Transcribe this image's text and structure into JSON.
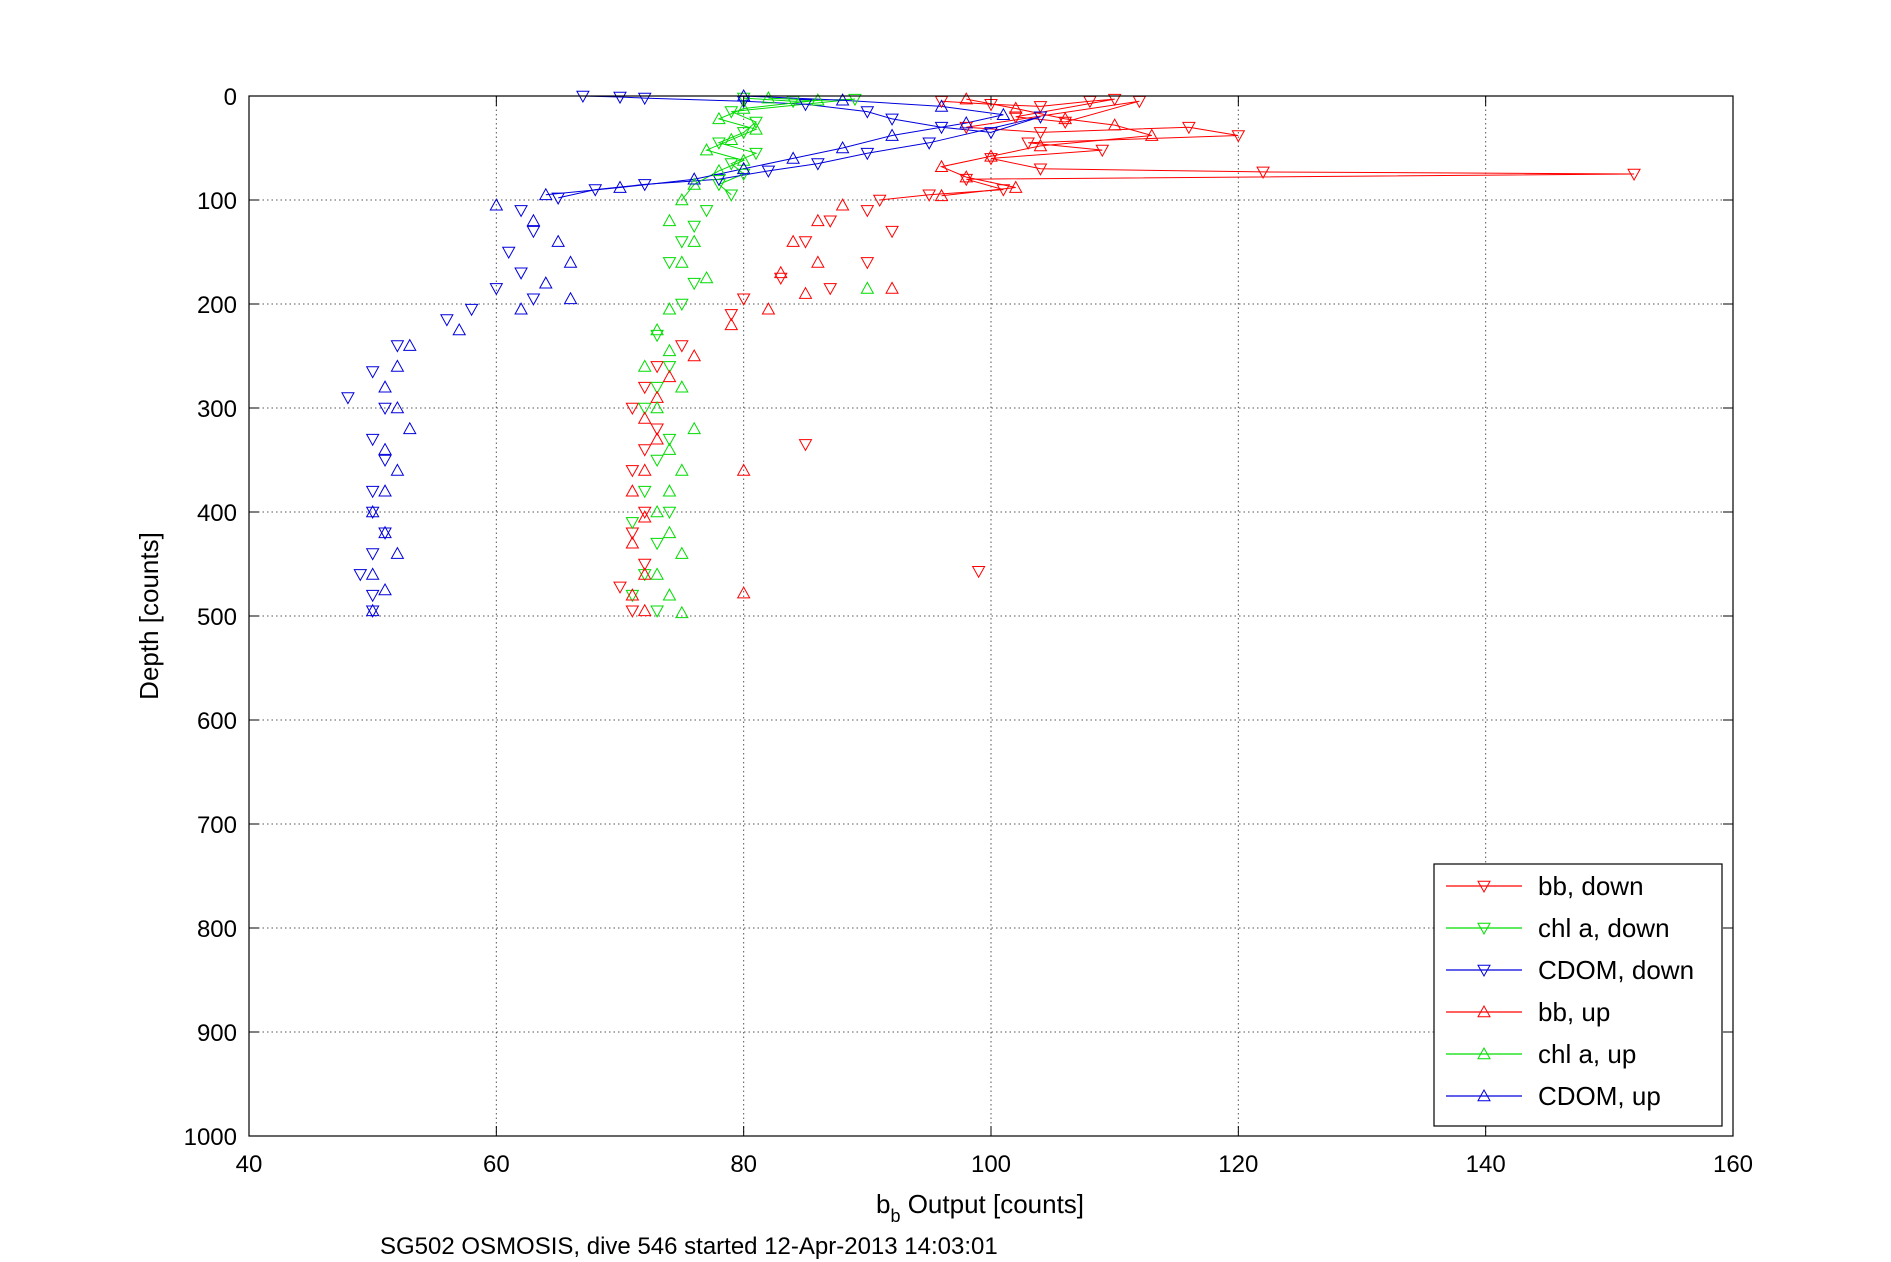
{
  "chart_data": {
    "type": "scatter",
    "xlabel_main": "b",
    "xlabel_sub": "b",
    "xlabel_rest": " Output [counts]",
    "ylabel": "Depth [counts]",
    "caption": "SG502 OSMOSIS, dive 546 started 12-Apr-2013 14:03:01",
    "xlim": [
      40,
      160
    ],
    "ylim": [
      0,
      1000
    ],
    "y_reversed": true,
    "grid": true,
    "legend_position": "bottom-right",
    "xticks": [
      "40",
      "60",
      "80",
      "100",
      "120",
      "140",
      "160"
    ],
    "yticks": [
      "0",
      "100",
      "200",
      "300",
      "400",
      "500",
      "600",
      "700",
      "800",
      "900",
      "1000"
    ],
    "series": [
      {
        "name": "bb, down",
        "color": "#ff0000",
        "marker": "triangle-down",
        "points": [
          [
            96,
            5
          ],
          [
            100,
            8
          ],
          [
            104,
            10
          ],
          [
            108,
            5
          ],
          [
            110,
            3
          ],
          [
            102,
            20
          ],
          [
            106,
            25
          ],
          [
            112,
            5
          ],
          [
            98,
            30
          ],
          [
            104,
            35
          ],
          [
            116,
            30
          ],
          [
            120,
            38
          ],
          [
            103,
            45
          ],
          [
            109,
            52
          ],
          [
            100,
            60
          ],
          [
            104,
            70
          ],
          [
            122,
            73
          ],
          [
            152,
            75
          ],
          [
            98,
            80
          ],
          [
            101,
            90
          ],
          [
            95,
            95
          ],
          [
            91,
            100
          ],
          [
            90,
            110
          ],
          [
            87,
            120
          ],
          [
            92,
            130
          ],
          [
            85,
            140
          ],
          [
            90,
            160
          ],
          [
            83,
            175
          ],
          [
            87,
            185
          ],
          [
            80,
            195
          ],
          [
            79,
            210
          ],
          [
            75,
            240
          ],
          [
            73,
            260
          ],
          [
            72,
            280
          ],
          [
            71,
            300
          ],
          [
            73,
            320
          ],
          [
            72,
            340
          ],
          [
            85,
            335
          ],
          [
            71,
            360
          ],
          [
            72,
            400
          ],
          [
            71,
            420
          ],
          [
            72,
            450
          ],
          [
            99,
            457
          ],
          [
            70,
            472
          ],
          [
            71,
            495
          ]
        ]
      },
      {
        "name": "chl a, down",
        "color": "#00dd00",
        "marker": "triangle-down",
        "points": [
          [
            80,
            2
          ],
          [
            84,
            5
          ],
          [
            89,
            3
          ],
          [
            79,
            15
          ],
          [
            81,
            25
          ],
          [
            80,
            35
          ],
          [
            78,
            45
          ],
          [
            81,
            55
          ],
          [
            79,
            65
          ],
          [
            80,
            75
          ],
          [
            78,
            85
          ],
          [
            79,
            95
          ],
          [
            77,
            110
          ],
          [
            76,
            125
          ],
          [
            75,
            140
          ],
          [
            74,
            160
          ],
          [
            76,
            180
          ],
          [
            75,
            200
          ],
          [
            73,
            230
          ],
          [
            74,
            260
          ],
          [
            73,
            280
          ],
          [
            72,
            300
          ],
          [
            74,
            330
          ],
          [
            73,
            350
          ],
          [
            72,
            380
          ],
          [
            74,
            400
          ],
          [
            71,
            410
          ],
          [
            73,
            430
          ],
          [
            72,
            460
          ],
          [
            71,
            480
          ],
          [
            73,
            495
          ]
        ]
      },
      {
        "name": "CDOM, down",
        "color": "#0000dd",
        "marker": "triangle-down",
        "points": [
          [
            67,
            0
          ],
          [
            70,
            1
          ],
          [
            72,
            2
          ],
          [
            80,
            5
          ],
          [
            85,
            8
          ],
          [
            90,
            15
          ],
          [
            92,
            22
          ],
          [
            96,
            30
          ],
          [
            100,
            35
          ],
          [
            104,
            20
          ],
          [
            95,
            45
          ],
          [
            90,
            55
          ],
          [
            86,
            65
          ],
          [
            82,
            72
          ],
          [
            78,
            80
          ],
          [
            72,
            85
          ],
          [
            68,
            90
          ],
          [
            65,
            98
          ],
          [
            62,
            110
          ],
          [
            63,
            130
          ],
          [
            61,
            150
          ],
          [
            62,
            170
          ],
          [
            60,
            185
          ],
          [
            63,
            195
          ],
          [
            58,
            205
          ],
          [
            56,
            215
          ],
          [
            52,
            240
          ],
          [
            50,
            265
          ],
          [
            48,
            290
          ],
          [
            51,
            300
          ],
          [
            50,
            330
          ],
          [
            51,
            350
          ],
          [
            50,
            380
          ],
          [
            50,
            400
          ],
          [
            51,
            420
          ],
          [
            50,
            440
          ],
          [
            49,
            460
          ],
          [
            50,
            480
          ],
          [
            50,
            495
          ]
        ]
      },
      {
        "name": "bb, up",
        "color": "#ff0000",
        "marker": "triangle-up",
        "points": [
          [
            98,
            3
          ],
          [
            102,
            12
          ],
          [
            106,
            22
          ],
          [
            110,
            28
          ],
          [
            113,
            38
          ],
          [
            104,
            48
          ],
          [
            100,
            58
          ],
          [
            96,
            68
          ],
          [
            98,
            78
          ],
          [
            102,
            88
          ],
          [
            96,
            96
          ],
          [
            88,
            105
          ],
          [
            86,
            120
          ],
          [
            84,
            140
          ],
          [
            86,
            160
          ],
          [
            83,
            170
          ],
          [
            85,
            190
          ],
          [
            92,
            185
          ],
          [
            82,
            205
          ],
          [
            79,
            220
          ],
          [
            76,
            250
          ],
          [
            74,
            270
          ],
          [
            73,
            290
          ],
          [
            72,
            310
          ],
          [
            73,
            330
          ],
          [
            72,
            360
          ],
          [
            80,
            360
          ],
          [
            71,
            380
          ],
          [
            72,
            405
          ],
          [
            71,
            430
          ],
          [
            72,
            460
          ],
          [
            80,
            478
          ],
          [
            71,
            480
          ],
          [
            72,
            495
          ]
        ]
      },
      {
        "name": "chl a, up",
        "color": "#00dd00",
        "marker": "triangle-up",
        "points": [
          [
            82,
            2
          ],
          [
            86,
            4
          ],
          [
            80,
            12
          ],
          [
            78,
            22
          ],
          [
            81,
            32
          ],
          [
            79,
            42
          ],
          [
            77,
            52
          ],
          [
            80,
            62
          ],
          [
            78,
            72
          ],
          [
            76,
            85
          ],
          [
            75,
            100
          ],
          [
            74,
            120
          ],
          [
            76,
            140
          ],
          [
            75,
            160
          ],
          [
            77,
            175
          ],
          [
            90,
            185
          ],
          [
            74,
            205
          ],
          [
            73,
            225
          ],
          [
            74,
            245
          ],
          [
            72,
            260
          ],
          [
            75,
            280
          ],
          [
            73,
            300
          ],
          [
            76,
            320
          ],
          [
            74,
            340
          ],
          [
            75,
            360
          ],
          [
            74,
            380
          ],
          [
            73,
            400
          ],
          [
            74,
            420
          ],
          [
            75,
            440
          ],
          [
            73,
            460
          ],
          [
            74,
            480
          ],
          [
            75,
            497
          ]
        ]
      },
      {
        "name": "CDOM, up",
        "color": "#0000dd",
        "marker": "triangle-up",
        "points": [
          [
            80,
            0
          ],
          [
            88,
            4
          ],
          [
            96,
            10
          ],
          [
            101,
            18
          ],
          [
            98,
            26
          ],
          [
            92,
            38
          ],
          [
            88,
            50
          ],
          [
            84,
            60
          ],
          [
            80,
            70
          ],
          [
            76,
            80
          ],
          [
            70,
            88
          ],
          [
            64,
            95
          ],
          [
            60,
            105
          ],
          [
            63,
            120
          ],
          [
            65,
            140
          ],
          [
            66,
            160
          ],
          [
            64,
            180
          ],
          [
            66,
            195
          ],
          [
            62,
            205
          ],
          [
            57,
            225
          ],
          [
            53,
            240
          ],
          [
            52,
            260
          ],
          [
            51,
            280
          ],
          [
            52,
            300
          ],
          [
            53,
            320
          ],
          [
            51,
            340
          ],
          [
            52,
            360
          ],
          [
            51,
            380
          ],
          [
            50,
            400
          ],
          [
            51,
            420
          ],
          [
            52,
            440
          ],
          [
            50,
            460
          ],
          [
            51,
            475
          ],
          [
            50,
            495
          ]
        ]
      }
    ]
  }
}
